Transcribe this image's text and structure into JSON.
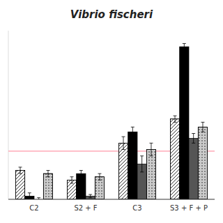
{
  "chart_data": {
    "type": "bar",
    "title": "Vibrio fischeri",
    "categories": [
      "C2",
      "S2 + F",
      "C3",
      "S3 + F + P"
    ],
    "series": [
      {
        "color": "white",
        "values": [
          18,
          12,
          35,
          50
        ],
        "errors": [
          2,
          2,
          4,
          2
        ]
      },
      {
        "color": "black",
        "values": [
          2,
          16,
          42,
          95
        ],
        "errors": [
          2,
          2,
          3,
          2
        ]
      },
      {
        "color": "#555555",
        "values": [
          0,
          2,
          22,
          38
        ],
        "errors": [
          1,
          1,
          5,
          3
        ]
      },
      {
        "color": "#cccccc",
        "values": [
          16,
          14,
          31,
          45
        ],
        "errors": [
          2,
          2,
          4,
          3
        ]
      }
    ],
    "hline": {
      "value": 30,
      "color": "#ff99aa"
    },
    "ylim": [
      0,
      105
    ],
    "tick_labels": "x",
    "grid": false
  }
}
